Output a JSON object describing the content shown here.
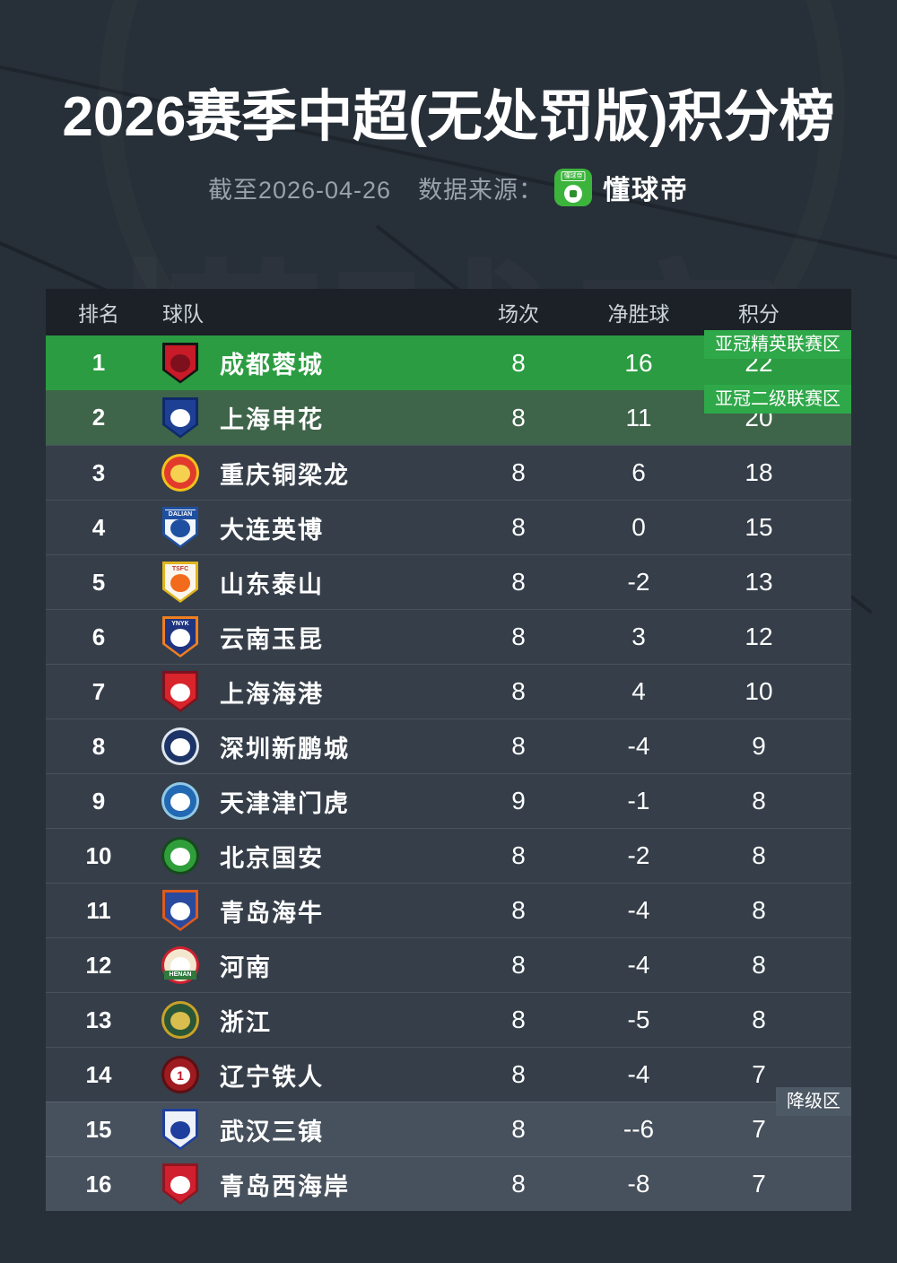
{
  "title": "2026赛季中超(无处罚版)积分榜",
  "subtitle": {
    "as_of": "截至2026-04-26",
    "source_label": "数据来源：",
    "source_logo": "dongqiudi-app-icon",
    "source_logo_mini_text": "懂球帝",
    "source_name": "懂球帝"
  },
  "colors": {
    "page_bg": "#272f38",
    "header_bg": "#1b2127",
    "row_bg": "#353e49",
    "afc_elite_row": "#2b9c41",
    "afc_two_row": "#3e6449",
    "relegation_row": "#47515d",
    "afc_badge": "#2fa849",
    "relegation_badge": "#4e5966",
    "source_brand_green": "#3cb43c"
  },
  "table": {
    "headers": {
      "rank": "排名",
      "team": "球队",
      "played": "场次",
      "gd": "净胜球",
      "pts": "积分"
    },
    "zones": [
      {
        "label": "亚冠精英联赛区",
        "row": 1,
        "type": "afc-elite"
      },
      {
        "label": "亚冠二级联赛区",
        "row": 2,
        "type": "afc-two"
      },
      {
        "label": "降级区",
        "row": 15,
        "type": "relegation"
      }
    ],
    "rows": [
      {
        "rank": 1,
        "team": "成都蓉城",
        "played": 8,
        "gd": "16",
        "pts": 22,
        "style": "afc-elite",
        "logo": {
          "icon": "chengdu-rongcheng-crest",
          "shape": "shield",
          "primary": "#c81a28",
          "border": "#141414",
          "inner": "#7e0f1c"
        }
      },
      {
        "rank": 2,
        "team": "上海申花",
        "played": 8,
        "gd": "11",
        "pts": 20,
        "style": "afc-two",
        "logo": {
          "icon": "shanghai-shenhua-crest",
          "shape": "shield",
          "primary": "#1d4094",
          "border": "#0e2a6b",
          "inner": "#ffffff"
        }
      },
      {
        "rank": 3,
        "team": "重庆铜梁龙",
        "played": 8,
        "gd": "6",
        "pts": 18,
        "style": "normal",
        "logo": {
          "icon": "chongqing-tongliang-long-crest",
          "shape": "circle",
          "primary": "#e23a2c",
          "border": "#f2c21c",
          "inner": "#f6d14f"
        }
      },
      {
        "rank": 4,
        "team": "大连英博",
        "played": 8,
        "gd": "0",
        "pts": 15,
        "style": "normal",
        "logo": {
          "icon": "dalian-yingbo-crest",
          "shape": "shield",
          "primary": "#f2f6fa",
          "border": "#1f4fa0",
          "inner": "#1f4fa0",
          "label": "DALIAN",
          "label_color": "#ffffff",
          "label_bg": "#1f4fa0",
          "label_pos": "top"
        }
      },
      {
        "rank": 5,
        "team": "山东泰山",
        "played": 8,
        "gd": "-2",
        "pts": 13,
        "style": "normal",
        "logo": {
          "icon": "shandong-taishan-crest",
          "shape": "shield",
          "primary": "#faf6ee",
          "border": "#e0b51e",
          "inner": "#f26a1b",
          "label": "TSFC",
          "label_color": "#c0392b",
          "label_pos": "top"
        }
      },
      {
        "rank": 6,
        "team": "云南玉昆",
        "played": 8,
        "gd": "3",
        "pts": 12,
        "style": "normal",
        "logo": {
          "icon": "yunnan-yukun-crest",
          "shape": "shield",
          "primary": "#20357f",
          "border": "#ef7f1f",
          "inner": "#ffffff",
          "label": "YNYK",
          "label_color": "#ffffff",
          "label_pos": "top"
        }
      },
      {
        "rank": 7,
        "team": "上海海港",
        "played": 8,
        "gd": "4",
        "pts": 10,
        "style": "normal",
        "logo": {
          "icon": "shanghai-port-crest",
          "shape": "shield",
          "primary": "#d8242b",
          "border": "#7e1220",
          "inner": "#ffffff"
        }
      },
      {
        "rank": 8,
        "team": "深圳新鹏城",
        "played": 8,
        "gd": "-4",
        "pts": 9,
        "style": "normal",
        "logo": {
          "icon": "shenzhen-peng-city-crest",
          "shape": "circle",
          "primary": "#1c3466",
          "border": "#dfe6ee",
          "inner": "#ffffff"
        }
      },
      {
        "rank": 9,
        "team": "天津津门虎",
        "played": 9,
        "gd": "-1",
        "pts": 8,
        "style": "normal",
        "logo": {
          "icon": "tianjin-jinmen-tiger-crest",
          "shape": "circle",
          "primary": "#2268b2",
          "border": "#8fc9e8",
          "inner": "#ffffff"
        }
      },
      {
        "rank": 10,
        "team": "北京国安",
        "played": 8,
        "gd": "-2",
        "pts": 8,
        "style": "normal",
        "logo": {
          "icon": "beijing-guoan-crest",
          "shape": "circle",
          "primary": "#2f9e3a",
          "border": "#16491c",
          "inner": "#ffffff"
        }
      },
      {
        "rank": 11,
        "team": "青岛海牛",
        "played": 8,
        "gd": "-4",
        "pts": 8,
        "style": "normal",
        "logo": {
          "icon": "qingdao-hainiu-crest",
          "shape": "shield",
          "primary": "#2a4a9e",
          "border": "#e05a1e",
          "inner": "#ffffff"
        }
      },
      {
        "rank": 12,
        "team": "河南",
        "played": 8,
        "gd": "-4",
        "pts": 8,
        "style": "normal",
        "logo": {
          "icon": "henan-crest",
          "shape": "circle",
          "primary": "#f3e8cf",
          "border": "#cf2030",
          "inner": "#ffffff",
          "label": "HENAN",
          "label_color": "#ffffff",
          "label_bg": "#2f7a3d",
          "label_pos": "bottom"
        }
      },
      {
        "rank": 13,
        "team": "浙江",
        "played": 8,
        "gd": "-5",
        "pts": 8,
        "style": "normal",
        "logo": {
          "icon": "zhejiang-crest",
          "shape": "circle",
          "primary": "#2a5638",
          "border": "#c9a227",
          "inner": "#d9bd4e"
        }
      },
      {
        "rank": 14,
        "team": "辽宁铁人",
        "played": 8,
        "gd": "-4",
        "pts": 7,
        "style": "normal",
        "logo": {
          "icon": "liaoning-tieren-crest",
          "shape": "circle",
          "primary": "#9e1b20",
          "border": "#5e0e12",
          "inner": "#ffffff",
          "mark": "1",
          "mark_color": "#c41527"
        }
      },
      {
        "rank": 15,
        "team": "武汉三镇",
        "played": 8,
        "gd": "--6",
        "pts": 7,
        "style": "relegation",
        "logo": {
          "icon": "wuhan-three-towns-crest",
          "shape": "shield",
          "primary": "#eef2f8",
          "border": "#1e3f9e",
          "inner": "#1e3f9e"
        }
      },
      {
        "rank": 16,
        "team": "青岛西海岸",
        "played": 8,
        "gd": "-8",
        "pts": 7,
        "style": "relegation",
        "logo": {
          "icon": "qingdao-west-coast-crest",
          "shape": "shield",
          "primary": "#d02030",
          "border": "#8f1620",
          "inner": "#ffffff"
        }
      }
    ]
  },
  "chart_data": {
    "type": "table",
    "title": "2026赛季中超(无处罚版)积分榜",
    "as_of": "2026-04-26",
    "source": "懂球帝",
    "columns": [
      "排名",
      "球队",
      "场次",
      "净胜球",
      "积分"
    ],
    "rows": [
      [
        1,
        "成都蓉城",
        8,
        "16",
        22
      ],
      [
        2,
        "上海申花",
        8,
        "11",
        20
      ],
      [
        3,
        "重庆铜梁龙",
        8,
        "6",
        18
      ],
      [
        4,
        "大连英博",
        8,
        "0",
        15
      ],
      [
        5,
        "山东泰山",
        8,
        "-2",
        13
      ],
      [
        6,
        "云南玉昆",
        8,
        "3",
        12
      ],
      [
        7,
        "上海海港",
        8,
        "4",
        10
      ],
      [
        8,
        "深圳新鹏城",
        8,
        "-4",
        9
      ],
      [
        9,
        "天津津门虎",
        9,
        "-1",
        8
      ],
      [
        10,
        "北京国安",
        8,
        "-2",
        8
      ],
      [
        11,
        "青岛海牛",
        8,
        "-4",
        8
      ],
      [
        12,
        "河南",
        8,
        "-4",
        8
      ],
      [
        13,
        "浙江",
        8,
        "-5",
        8
      ],
      [
        14,
        "辽宁铁人",
        8,
        "-4",
        7
      ],
      [
        15,
        "武汉三镇",
        8,
        "--6",
        7
      ],
      [
        16,
        "青岛西海岸",
        8,
        "-8",
        7
      ]
    ],
    "zone_annotations": [
      {
        "label": "亚冠精英联赛区",
        "applies_to_rank": 1
      },
      {
        "label": "亚冠二级联赛区",
        "applies_to_rank": 2
      },
      {
        "label": "降级区",
        "applies_to_ranks": [
          15,
          16
        ]
      }
    ]
  }
}
